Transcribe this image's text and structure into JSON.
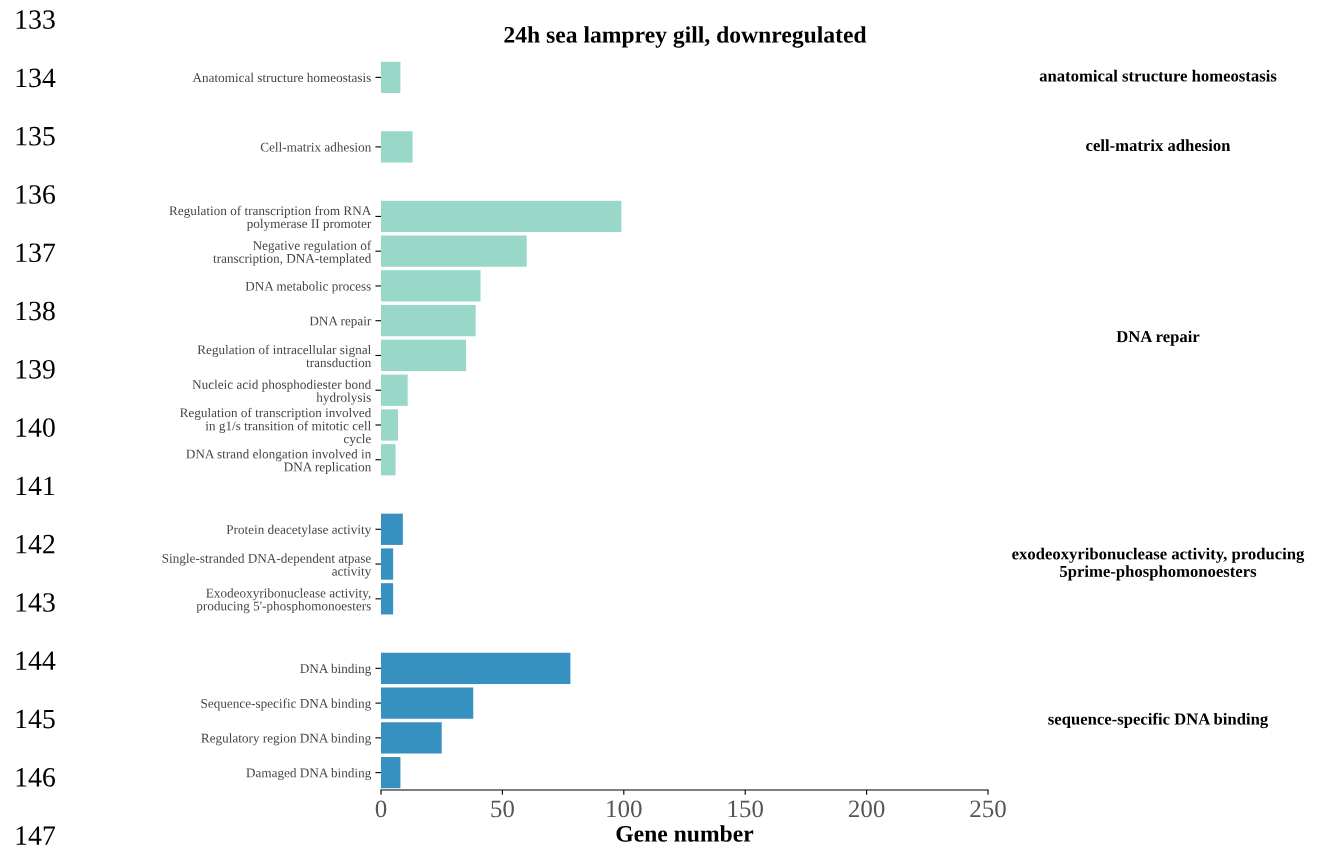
{
  "chart_data": {
    "type": "bar",
    "orientation": "horizontal",
    "title": "24h sea lamprey gill, downregulated",
    "xlabel": "Gene number",
    "categories": [
      "Anatomical structure homeostasis",
      null,
      "Cell-matrix adhesion",
      null,
      "Regulation of transcription from RNA polymerase II promoter",
      "Negative regulation of transcription, DNA-templated",
      "DNA metabolic process",
      "DNA repair",
      "Regulation of intracellular signal transduction",
      "Nucleic acid phosphodiester bond hydrolysis",
      "Regulation of transcription involved in g1/s transition of mitotic cell cycle",
      "DNA strand elongation involved in DNA replication",
      null,
      "Protein deacetylase activity",
      "Single-stranded DNA-dependent atpase activity",
      "Exodeoxyribonuclease activity, producing 5'-phosphomonoesters",
      null,
      "DNA binding",
      "Sequence-specific DNA binding",
      "Regulatory region DNA binding",
      "Damaged DNA binding"
    ],
    "values": [
      8,
      null,
      13,
      null,
      99,
      60,
      41,
      39,
      35,
      11,
      7,
      6,
      null,
      9,
      5,
      5,
      null,
      78,
      38,
      25,
      8
    ],
    "colors": [
      "#99d8c9",
      null,
      "#99d8c9",
      null,
      "#99d8c9",
      "#99d8c9",
      "#99d8c9",
      "#99d8c9",
      "#99d8c9",
      "#99d8c9",
      "#99d8c9",
      "#99d8c9",
      null,
      "#3690c0",
      "#3690c0",
      "#3690c0",
      null,
      "#3690c0",
      "#3690c0",
      "#3690c0",
      "#3690c0"
    ],
    "xlim": [
      0,
      250
    ],
    "xticks": [
      0,
      50,
      100,
      150,
      200,
      250
    ],
    "grid": false,
    "legend": false,
    "annotations": [
      "anatomical structure homeostasis",
      "cell-matrix adhesion",
      "DNA repair",
      "exodeoxyribonuclease activity, producing 5prime-phosphomonoesters",
      "sequence-specific DNA binding",
      "133",
      "134",
      "135",
      "136",
      "137",
      "138",
      "139",
      "140",
      "141",
      "142",
      "143",
      "144",
      "145",
      "146",
      "147"
    ]
  }
}
